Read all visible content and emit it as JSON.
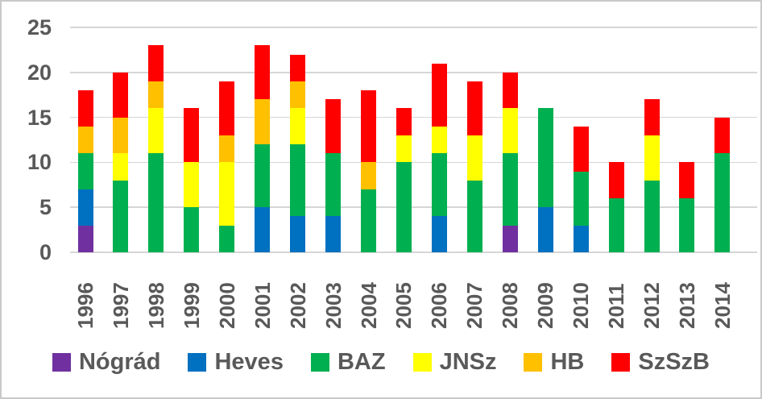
{
  "chart_data": {
    "type": "bar",
    "stacked": true,
    "title": "",
    "xlabel": "",
    "ylabel": "",
    "ylim": [
      0,
      25
    ],
    "yticks": [
      0,
      5,
      10,
      15,
      20,
      25
    ],
    "grid": true,
    "legend_position": "bottom",
    "categories": [
      "1996",
      "1997",
      "1998",
      "1999",
      "2000",
      "2001",
      "2002",
      "2003",
      "2004",
      "2005",
      "2006",
      "2007",
      "2008",
      "2009",
      "2010",
      "2011",
      "2012",
      "2013",
      "2014"
    ],
    "series": [
      {
        "name": "Nógrád",
        "color": "#7030A0",
        "values": [
          3,
          0,
          0,
          0,
          0,
          0,
          0,
          0,
          0,
          0,
          0,
          0,
          3,
          0,
          0,
          0,
          0,
          0,
          0
        ]
      },
      {
        "name": "Heves",
        "color": "#0070C0",
        "values": [
          4,
          0,
          0,
          0,
          0,
          5,
          4,
          4,
          0,
          0,
          4,
          0,
          0,
          5,
          3,
          0,
          0,
          0,
          0
        ]
      },
      {
        "name": "BAZ",
        "color": "#00B050",
        "values": [
          4,
          8,
          11,
          5,
          3,
          7,
          8,
          7,
          7,
          10,
          7,
          8,
          8,
          11,
          6,
          6,
          8,
          6,
          11
        ]
      },
      {
        "name": "JNSz",
        "color": "#FFFF00",
        "values": [
          0,
          3,
          5,
          5,
          7,
          0,
          4,
          0,
          0,
          3,
          3,
          5,
          5,
          0,
          0,
          0,
          5,
          0,
          0
        ]
      },
      {
        "name": "HB",
        "color": "#FFC000",
        "values": [
          3,
          4,
          3,
          0,
          3,
          5,
          3,
          0,
          3,
          0,
          0,
          0,
          0,
          0,
          0,
          0,
          0,
          0,
          0
        ]
      },
      {
        "name": "SzSzB",
        "color": "#FF0000",
        "values": [
          4,
          5,
          4,
          6,
          6,
          6,
          3,
          6,
          8,
          3,
          7,
          6,
          4,
          0,
          5,
          4,
          4,
          4,
          4
        ]
      }
    ],
    "totals": [
      18,
      20,
      23,
      16,
      19,
      23,
      22,
      17,
      18,
      16,
      21,
      19,
      20,
      16,
      14,
      10,
      17,
      10,
      15
    ]
  },
  "style": {
    "axis_text_color": "#595959",
    "gridline_color": "#D6D6D6",
    "frame_border_color": "#C9C9C9",
    "background_color": "#FFFFFF"
  }
}
